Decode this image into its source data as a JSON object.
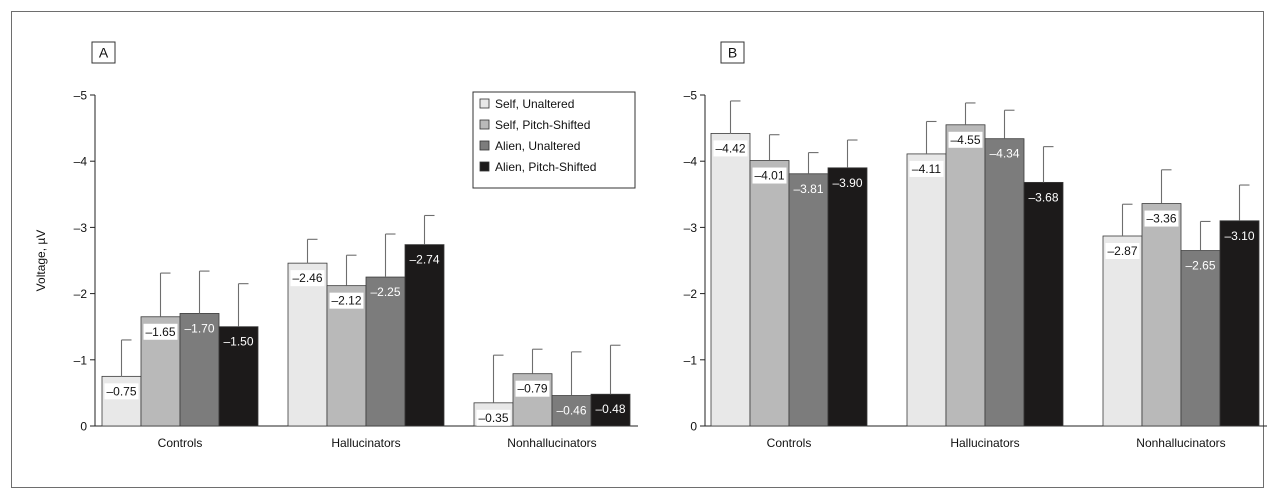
{
  "colors": {
    "series": [
      "#e8e8e8",
      "#b9b9b9",
      "#7c7c7c",
      "#1c1a1a"
    ],
    "error_bar": "#6e6e6e",
    "axis": "#222222",
    "frame": "#6e6e6e"
  },
  "chart_data": [
    {
      "type": "bar",
      "panel_label": "A",
      "ylabel": "Voltage, µV",
      "ylim": [
        0,
        -5
      ],
      "yticks": [
        0,
        -1,
        -2,
        -3,
        -4,
        -5
      ],
      "ytick_labels": [
        "0",
        "–1",
        "–2",
        "–3",
        "–4",
        "–5"
      ],
      "categories": [
        "Controls",
        "Hallucinators",
        "Nonhallucinators"
      ],
      "legend": {
        "placement": "top-right",
        "show": true
      },
      "series": [
        {
          "name": "Self, Unaltered",
          "values": [
            -0.75,
            -2.46,
            -0.35
          ],
          "labels": [
            "–0.75",
            "–2.46",
            "–0.35"
          ],
          "errors": [
            0.55,
            0.36,
            0.72
          ]
        },
        {
          "name": "Self, Pitch-Shifted",
          "values": [
            -1.65,
            -2.12,
            -0.79
          ],
          "labels": [
            "–1.65",
            "–2.12",
            "–0.79"
          ],
          "errors": [
            0.66,
            0.46,
            0.37
          ]
        },
        {
          "name": "Alien, Unaltered",
          "values": [
            -1.7,
            -2.25,
            -0.46
          ],
          "labels": [
            "–1.70",
            "–2.25",
            "–0.46"
          ],
          "errors": [
            0.64,
            0.65,
            0.66
          ]
        },
        {
          "name": "Alien, Pitch-Shifted",
          "values": [
            -1.5,
            -2.74,
            -0.48
          ],
          "labels": [
            "–1.50",
            "–2.74",
            "–0.48"
          ],
          "errors": [
            0.65,
            0.44,
            0.74
          ]
        }
      ]
    },
    {
      "type": "bar",
      "panel_label": "B",
      "ylabel": "",
      "ylim": [
        0,
        -5
      ],
      "yticks": [
        0,
        -1,
        -2,
        -3,
        -4,
        -5
      ],
      "ytick_labels": [
        "0",
        "–1",
        "–2",
        "–3",
        "–4",
        "–5"
      ],
      "categories": [
        "Controls",
        "Hallucinators",
        "Nonhallucinators"
      ],
      "legend": {
        "show": false
      },
      "series": [
        {
          "name": "Self, Unaltered",
          "values": [
            -4.42,
            -4.11,
            -2.87
          ],
          "labels": [
            "–4.42",
            "–4.11",
            "–2.87"
          ],
          "errors": [
            0.49,
            0.49,
            0.48
          ]
        },
        {
          "name": "Self, Pitch-Shifted",
          "values": [
            -4.01,
            -4.55,
            -3.36
          ],
          "labels": [
            "–4.01",
            "–4.55",
            "–3.36"
          ],
          "errors": [
            0.39,
            0.33,
            0.51
          ]
        },
        {
          "name": "Alien, Unaltered",
          "values": [
            -3.81,
            -4.34,
            -2.65
          ],
          "labels": [
            "–3.81",
            "–4.34",
            "–2.65"
          ],
          "errors": [
            0.32,
            0.43,
            0.44
          ]
        },
        {
          "name": "Alien, Pitch-Shifted",
          "values": [
            -3.9,
            -3.68,
            -3.1
          ],
          "labels": [
            "–3.90",
            "–3.68",
            "–3.10"
          ],
          "errors": [
            0.42,
            0.54,
            0.54
          ]
        }
      ]
    }
  ]
}
